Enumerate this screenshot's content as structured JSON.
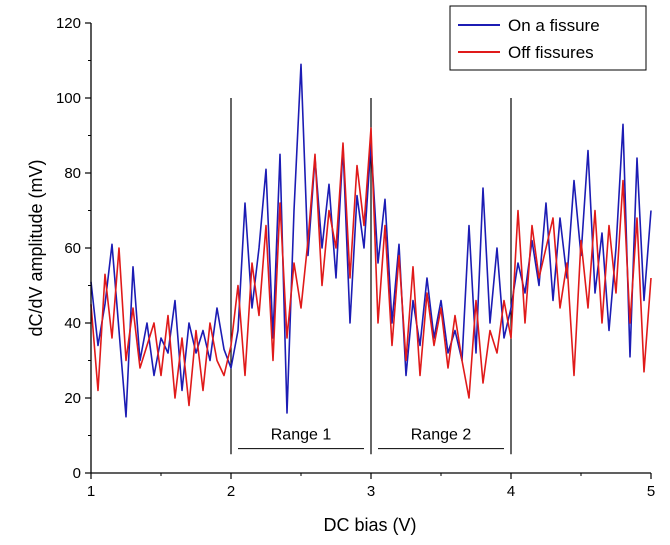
{
  "chart_data": {
    "type": "line",
    "title": "",
    "xlabel": "DC bias (V)",
    "ylabel": "dC/dV amplitude (mV)",
    "xlim": [
      1,
      5
    ],
    "ylim": [
      0,
      120
    ],
    "x_ticks": [
      1,
      2,
      3,
      4,
      5
    ],
    "x_tick_labels": [
      "1",
      "2",
      "3",
      "4",
      "5"
    ],
    "y_ticks": [
      0,
      20,
      40,
      60,
      80,
      100,
      120
    ],
    "y_tick_labels": [
      "0",
      "20",
      "40",
      "60",
      "80",
      "100",
      "120"
    ],
    "grid": false,
    "legend_position": "top-right",
    "vertical_markers": [
      2,
      3,
      4
    ],
    "ranges": [
      {
        "label": "Range 1",
        "x_start": 2.05,
        "x_end": 2.95,
        "y": 6.5
      },
      {
        "label": "Range 2",
        "x_start": 3.05,
        "x_end": 3.95,
        "y": 6.5
      }
    ],
    "series": [
      {
        "name": "On a fissure",
        "color": "#1c1cb4",
        "x": [
          1.0,
          1.05,
          1.1,
          1.15,
          1.2,
          1.25,
          1.3,
          1.35,
          1.4,
          1.45,
          1.5,
          1.55,
          1.6,
          1.65,
          1.7,
          1.75,
          1.8,
          1.85,
          1.9,
          1.95,
          2.0,
          2.05,
          2.1,
          2.15,
          2.2,
          2.25,
          2.3,
          2.35,
          2.4,
          2.45,
          2.5,
          2.55,
          2.6,
          2.65,
          2.7,
          2.75,
          2.8,
          2.85,
          2.9,
          2.95,
          3.0,
          3.05,
          3.1,
          3.15,
          3.2,
          3.25,
          3.3,
          3.35,
          3.4,
          3.45,
          3.5,
          3.55,
          3.6,
          3.65,
          3.7,
          3.75,
          3.8,
          3.85,
          3.9,
          3.95,
          4.0,
          4.05,
          4.1,
          4.15,
          4.2,
          4.25,
          4.3,
          4.35,
          4.4,
          4.45,
          4.5,
          4.55,
          4.6,
          4.65,
          4.7,
          4.75,
          4.8,
          4.85,
          4.9,
          4.95,
          5.0
        ],
        "y": [
          51,
          34,
          45,
          61,
          38,
          15,
          55,
          30,
          40,
          26,
          36,
          32,
          46,
          22,
          40,
          32,
          38,
          30,
          44,
          33,
          28,
          38,
          72,
          44,
          60,
          81,
          36,
          85,
          16,
          70,
          109,
          58,
          84,
          60,
          77,
          52,
          87,
          40,
          74,
          60,
          88,
          56,
          73,
          40,
          61,
          26,
          46,
          34,
          52,
          36,
          46,
          32,
          38,
          30,
          66,
          32,
          76,
          40,
          60,
          36,
          44,
          56,
          48,
          62,
          50,
          72,
          46,
          68,
          52,
          78,
          58,
          86,
          48,
          64,
          38,
          60,
          93,
          31,
          84,
          46,
          70
        ]
      },
      {
        "name": "Off fissures",
        "color": "#e01a1a",
        "x": [
          1.0,
          1.05,
          1.1,
          1.15,
          1.2,
          1.25,
          1.3,
          1.35,
          1.4,
          1.45,
          1.5,
          1.55,
          1.6,
          1.65,
          1.7,
          1.75,
          1.8,
          1.85,
          1.9,
          1.95,
          2.0,
          2.05,
          2.1,
          2.15,
          2.2,
          2.25,
          2.3,
          2.35,
          2.4,
          2.45,
          2.5,
          2.55,
          2.6,
          2.65,
          2.7,
          2.75,
          2.8,
          2.85,
          2.9,
          2.95,
          3.0,
          3.05,
          3.1,
          3.15,
          3.2,
          3.25,
          3.3,
          3.35,
          3.4,
          3.45,
          3.5,
          3.55,
          3.6,
          3.65,
          3.7,
          3.75,
          3.8,
          3.85,
          3.9,
          3.95,
          4.0,
          4.05,
          4.1,
          4.15,
          4.2,
          4.25,
          4.3,
          4.35,
          4.4,
          4.45,
          4.5,
          4.55,
          4.6,
          4.65,
          4.7,
          4.75,
          4.8,
          4.85,
          4.9,
          4.95,
          5.0
        ],
        "y": [
          45,
          22,
          53,
          36,
          60,
          30,
          44,
          28,
          34,
          40,
          26,
          42,
          20,
          36,
          18,
          38,
          22,
          40,
          30,
          26,
          34,
          50,
          26,
          56,
          42,
          66,
          30,
          72,
          36,
          56,
          44,
          62,
          85,
          50,
          70,
          60,
          88,
          52,
          82,
          66,
          92,
          40,
          66,
          34,
          58,
          30,
          55,
          26,
          48,
          34,
          44,
          28,
          42,
          30,
          20,
          46,
          24,
          38,
          32,
          46,
          36,
          70,
          40,
          66,
          52,
          60,
          68,
          44,
          56,
          26,
          62,
          44,
          70,
          40,
          66,
          48,
          78,
          40,
          68,
          27,
          52
        ]
      }
    ]
  }
}
